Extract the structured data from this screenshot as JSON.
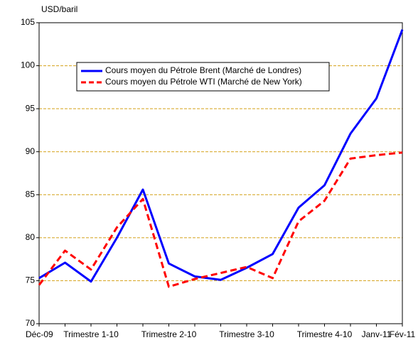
{
  "chart_data": {
    "type": "line",
    "y_label": "USD/baril",
    "categories": [
      "Déc-09",
      null,
      "Trimestre 1-10",
      null,
      null,
      "Trimestre 2-10",
      null,
      null,
      "Trimestre 3-10",
      null,
      null,
      "Trimestre 4-10",
      null,
      "Janv-11",
      "Fév-11"
    ],
    "series": [
      {
        "name": "Cours moyen du Pétrole Brent (Marché de Londres)",
        "color": "#0000ff",
        "dash": "solid",
        "values": [
          75.3,
          77.1,
          74.9,
          80,
          85.6,
          77,
          75.5,
          75.1,
          76.5,
          78.1,
          83.5,
          86.1,
          92.1,
          96.2,
          104.2
        ]
      },
      {
        "name": "Cours moyen du Pétrole WTI (Marché de New York)",
        "color": "#ff0000",
        "dash": "dashed",
        "values": [
          74.5,
          78.5,
          76.3,
          81.2,
          84.5,
          74.3,
          75.2,
          75.9,
          76.6,
          75.3,
          81.9,
          84.3,
          89.2,
          89.6,
          89.9
        ]
      }
    ],
    "ylim": [
      70,
      105
    ],
    "yticks": [
      70,
      75,
      80,
      85,
      90,
      95,
      100,
      105
    ],
    "grid": true,
    "grid_color": "#d4a017",
    "legend": "upper left"
  }
}
